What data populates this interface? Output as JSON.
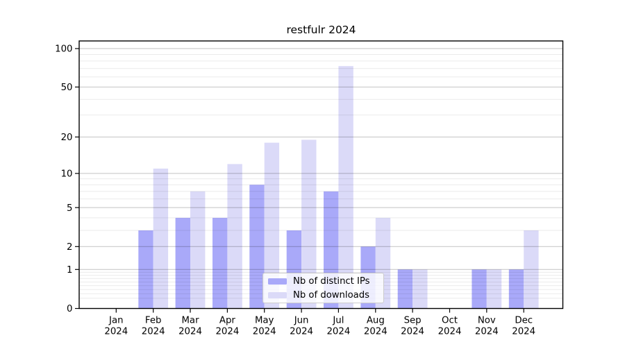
{
  "title": "restfulr 2024",
  "chart_data": {
    "type": "bar",
    "title": "restfulr 2024",
    "months": [
      "Jan",
      "Feb",
      "Mar",
      "Apr",
      "May",
      "Jun",
      "Jul",
      "Aug",
      "Sep",
      "Oct",
      "Nov",
      "Dec"
    ],
    "x_tick_year": "2024",
    "categories": [
      "Jan 2024",
      "Feb 2024",
      "Mar 2024",
      "Apr 2024",
      "May 2024",
      "Jun 2024",
      "Jul 2024",
      "Aug 2024",
      "Sep 2024",
      "Oct 2024",
      "Nov 2024",
      "Dec 2024"
    ],
    "series": [
      {
        "name": "Nb of distinct IPs",
        "color": "#a9a9f9",
        "values": [
          0,
          3,
          4,
          4,
          8,
          3,
          7,
          2,
          1,
          0,
          1,
          1
        ]
      },
      {
        "name": "Nb of downloads",
        "color": "#dbdaf8",
        "values": [
          0,
          11,
          7,
          12,
          18,
          19,
          73,
          4,
          1,
          0,
          1,
          3
        ]
      }
    ],
    "y_scale": "log10(1+x)",
    "y_major_ticks": [
      0,
      1,
      2,
      5,
      10,
      20,
      50,
      100
    ],
    "y_minor_gridlines": [
      0.2,
      0.3,
      0.4,
      0.5,
      0.6,
      0.7,
      0.8,
      0.9,
      3,
      4,
      6,
      7,
      8,
      9,
      30,
      40,
      60,
      70,
      80,
      90
    ],
    "ylim": [
      0,
      115
    ],
    "xlabel": "",
    "ylabel": "",
    "grid": "horizontal-only",
    "legend_position": "inside-bottom-center"
  },
  "colors": {
    "distinct_ips_bar": "#a9a9f9",
    "downloads_bar": "#dbdaf8",
    "major_gridline": "rgba(0,0,0,0.24)",
    "minor_gridline": "rgba(0,0,0,0.08)",
    "axis_frame": "#000000",
    "background": "#ffffff"
  }
}
